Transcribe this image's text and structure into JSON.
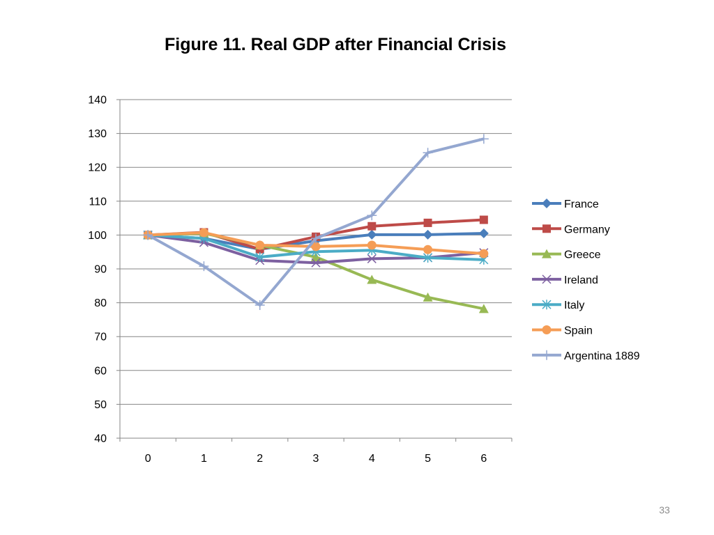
{
  "slide": {
    "title": "Figure 11. Real GDP after Financial Crisis",
    "page_number": "33"
  },
  "chart_data": {
    "type": "line",
    "title": "Figure 11. Real GDP after Financial Crisis",
    "xlabel": "",
    "ylabel": "",
    "x": [
      0,
      1,
      2,
      3,
      4,
      5,
      6
    ],
    "ylim": [
      40,
      140
    ],
    "yticks": [
      40,
      50,
      60,
      70,
      80,
      90,
      100,
      110,
      120,
      130,
      140
    ],
    "grid": true,
    "legend_position": "right",
    "series": [
      {
        "name": "France",
        "color": "#4a7ebb",
        "marker": "diamond",
        "values": [
          100,
          99.0,
          95.8,
          98.3,
          100.1,
          100.1,
          100.5
        ]
      },
      {
        "name": "Germany",
        "color": "#be4b48",
        "marker": "square",
        "values": [
          100,
          100.8,
          95.8,
          99.5,
          102.6,
          103.6,
          104.5
        ]
      },
      {
        "name": "Greece",
        "color": "#98b954",
        "marker": "triangle",
        "values": [
          100,
          100.5,
          97.0,
          93.5,
          86.8,
          81.6,
          78.2
        ]
      },
      {
        "name": "Ireland",
        "color": "#7d60a0",
        "marker": "x",
        "values": [
          100,
          97.8,
          92.5,
          91.8,
          93.0,
          93.3,
          94.8
        ]
      },
      {
        "name": "Italy",
        "color": "#4bacc6",
        "marker": "asterisk",
        "values": [
          100,
          99.0,
          93.5,
          95.1,
          95.5,
          93.3,
          92.7
        ]
      },
      {
        "name": "Spain",
        "color": "#f59d56",
        "marker": "circle",
        "values": [
          100,
          100.7,
          97.0,
          96.6,
          97.0,
          95.7,
          94.5
        ]
      },
      {
        "name": "Argentina 1889",
        "color": "#94a7d0",
        "marker": "plus",
        "values": [
          100,
          90.8,
          79.3,
          99.0,
          105.8,
          124.3,
          128.4
        ]
      }
    ]
  }
}
